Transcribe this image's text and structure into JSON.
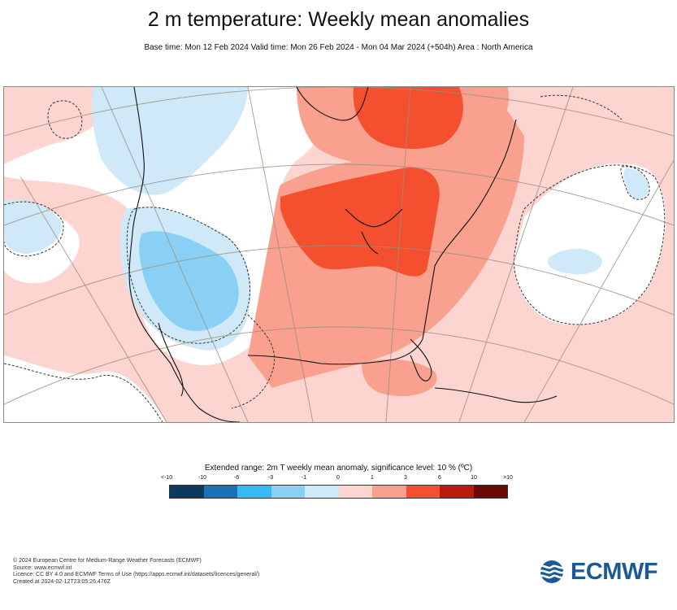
{
  "title": "2 m temperature: Weekly mean anomalies",
  "subtitle": "Base time: Mon 12 Feb 2024 Valid time: Mon 26 Feb 2024 - Mon 04 Mar 2024 (+504h) Area : North America",
  "legend": {
    "title": "Extended range: 2m T weekly mean anomaly, significance level: 10 % (ºC)",
    "ticks": [
      "<-10",
      "-10",
      "-6",
      "-3",
      "-1",
      "0",
      "1",
      "3",
      "6",
      "10",
      ">10"
    ],
    "colors": [
      "#0c3a5c",
      "#1a72b4",
      "#38b8f5",
      "#8ad0f5",
      "#cfe9f9",
      "#fcd4d0",
      "#f9a08e",
      "#f4502f",
      "#b81c0a",
      "#6a0a05"
    ]
  },
  "map": {
    "region": "North America",
    "anomaly_color_cold_strong": "#8ad0f5",
    "anomaly_color_cold_weak": "#cfe9f9",
    "anomaly_color_neutral": "#ffffff",
    "anomaly_color_warm_weak": "#fcd4d0",
    "anomaly_color_warm_mid": "#f9a08e",
    "anomaly_color_warm_strong": "#f4502f"
  },
  "footer": {
    "line1": "© 2024 European Centre for Medium-Range Weather Forecasts (ECMWF)",
    "line2": "Source: www.ecmwf.int",
    "line3": "Licence: CC BY 4.0 and ECMWF Terms of Use (https://apps.ecmwf.int/datasets/licences/general/)",
    "line4": "Created at 2024-02-12T23:05:26.476Z"
  },
  "logo": {
    "text": "ECMWF",
    "icon": "ecmwf-logo-icon",
    "color": "#1a5a96"
  }
}
